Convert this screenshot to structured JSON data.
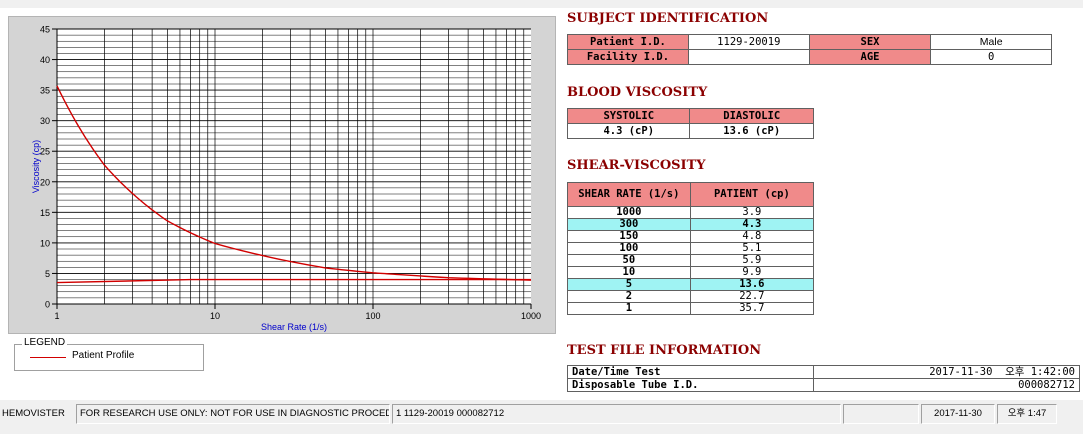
{
  "chart_data": {
    "type": "line",
    "xlabel": "Shear Rate (1/s)",
    "ylabel": "Viscosity (cp)",
    "x_scale": "log",
    "xlim": [
      1,
      1000
    ],
    "ylim": [
      0,
      45
    ],
    "x_ticks": [
      "1",
      "10",
      "100",
      "1000"
    ],
    "y_ticks": [
      "0",
      "5",
      "10",
      "15",
      "20",
      "25",
      "30",
      "35",
      "40",
      "45"
    ],
    "grid": true,
    "series": [
      {
        "name": "Patient Profile",
        "x": [
          1,
          2,
          5,
          10,
          50,
          100,
          150,
          300,
          1000
        ],
        "y": [
          35.7,
          22.7,
          13.6,
          9.9,
          5.9,
          5.1,
          4.8,
          4.3,
          3.9
        ]
      },
      {
        "x": [
          1,
          7,
          1000
        ],
        "y": [
          3.5,
          4,
          4
        ]
      }
    ],
    "colors": {
      "line": "#d10000",
      "plot_bg": "#ffffff",
      "panel_bg": "#d4d4d4",
      "grid": "#000000"
    }
  },
  "legend": {
    "title": "LEGEND",
    "entries": [
      "Patient Profile"
    ]
  },
  "subject": {
    "title": "SUBJECT IDENTIFICATION",
    "patient_id_label": "Patient I.D.",
    "patient_id_value": "1129-20019",
    "sex_label": "SEX",
    "sex_value": "Male",
    "facility_label": "Facility I.D.",
    "facility_value": "",
    "age_label": "AGE",
    "age_value": "0"
  },
  "blood": {
    "title": "BLOOD VISCOSITY",
    "systolic_label": "SYSTOLIC",
    "diastolic_label": "DIASTOLIC",
    "systolic_value": "4.3 (cP)",
    "diastolic_value": "13.6 (cP)"
  },
  "shear": {
    "title": "SHEAR-VISCOSITY",
    "col_rate": "SHEAR RATE (1/s)",
    "col_patient": "PATIENT (cp)",
    "rows": [
      {
        "rate": "1000",
        "patient": "3.9"
      },
      {
        "rate": "300",
        "patient": "4.3"
      },
      {
        "rate": "150",
        "patient": "4.8"
      },
      {
        "rate": "100",
        "patient": "5.1"
      },
      {
        "rate": "50",
        "patient": "5.9"
      },
      {
        "rate": "10",
        "patient": "9.9"
      },
      {
        "rate": "5",
        "patient": "13.6"
      },
      {
        "rate": "2",
        "patient": "22.7"
      },
      {
        "rate": "1",
        "patient": "35.7"
      }
    ]
  },
  "testfile": {
    "title": "TEST FILE INFORMATION",
    "datetime_label": "Date/Time Test",
    "datetime_value": "2017-11-30  오후 1:42:00",
    "tube_label": "Disposable Tube I.D.",
    "tube_value": "000082712"
  },
  "status": {
    "app": "HEMOVISTER",
    "notice": "FOR RESEARCH USE ONLY: NOT FOR USE IN DIAGNOSTIC PROCEDURES",
    "record": "1  1129-20019  000082712",
    "date": "2017-11-30",
    "time": "오후 1:47"
  }
}
